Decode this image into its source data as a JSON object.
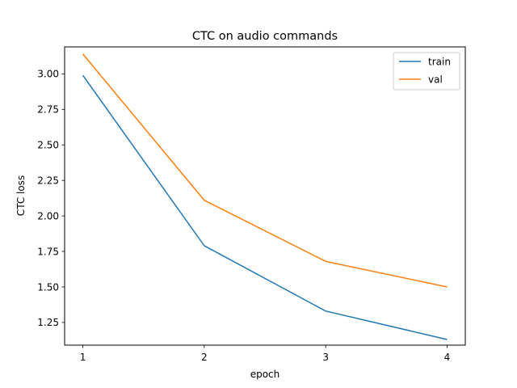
{
  "chart_data": {
    "type": "line",
    "title": "CTC on audio commands",
    "xlabel": "epoch",
    "ylabel": "CTC loss",
    "x": [
      1,
      2,
      3,
      4
    ],
    "xticks": [
      "1",
      "2",
      "3",
      "4"
    ],
    "yticks": [
      "1.25",
      "1.50",
      "1.75",
      "2.00",
      "2.25",
      "2.50",
      "2.75",
      "3.00"
    ],
    "xlim": [
      0.85,
      4.15
    ],
    "ylim": [
      1.09,
      3.19
    ],
    "grid": false,
    "legend_position": "top-right",
    "series": [
      {
        "name": "train",
        "color": "#1f77b4",
        "values": [
          2.99,
          1.79,
          1.33,
          1.13
        ]
      },
      {
        "name": "val",
        "color": "#ff7f0e",
        "values": [
          3.14,
          2.11,
          1.68,
          1.5
        ]
      }
    ]
  }
}
